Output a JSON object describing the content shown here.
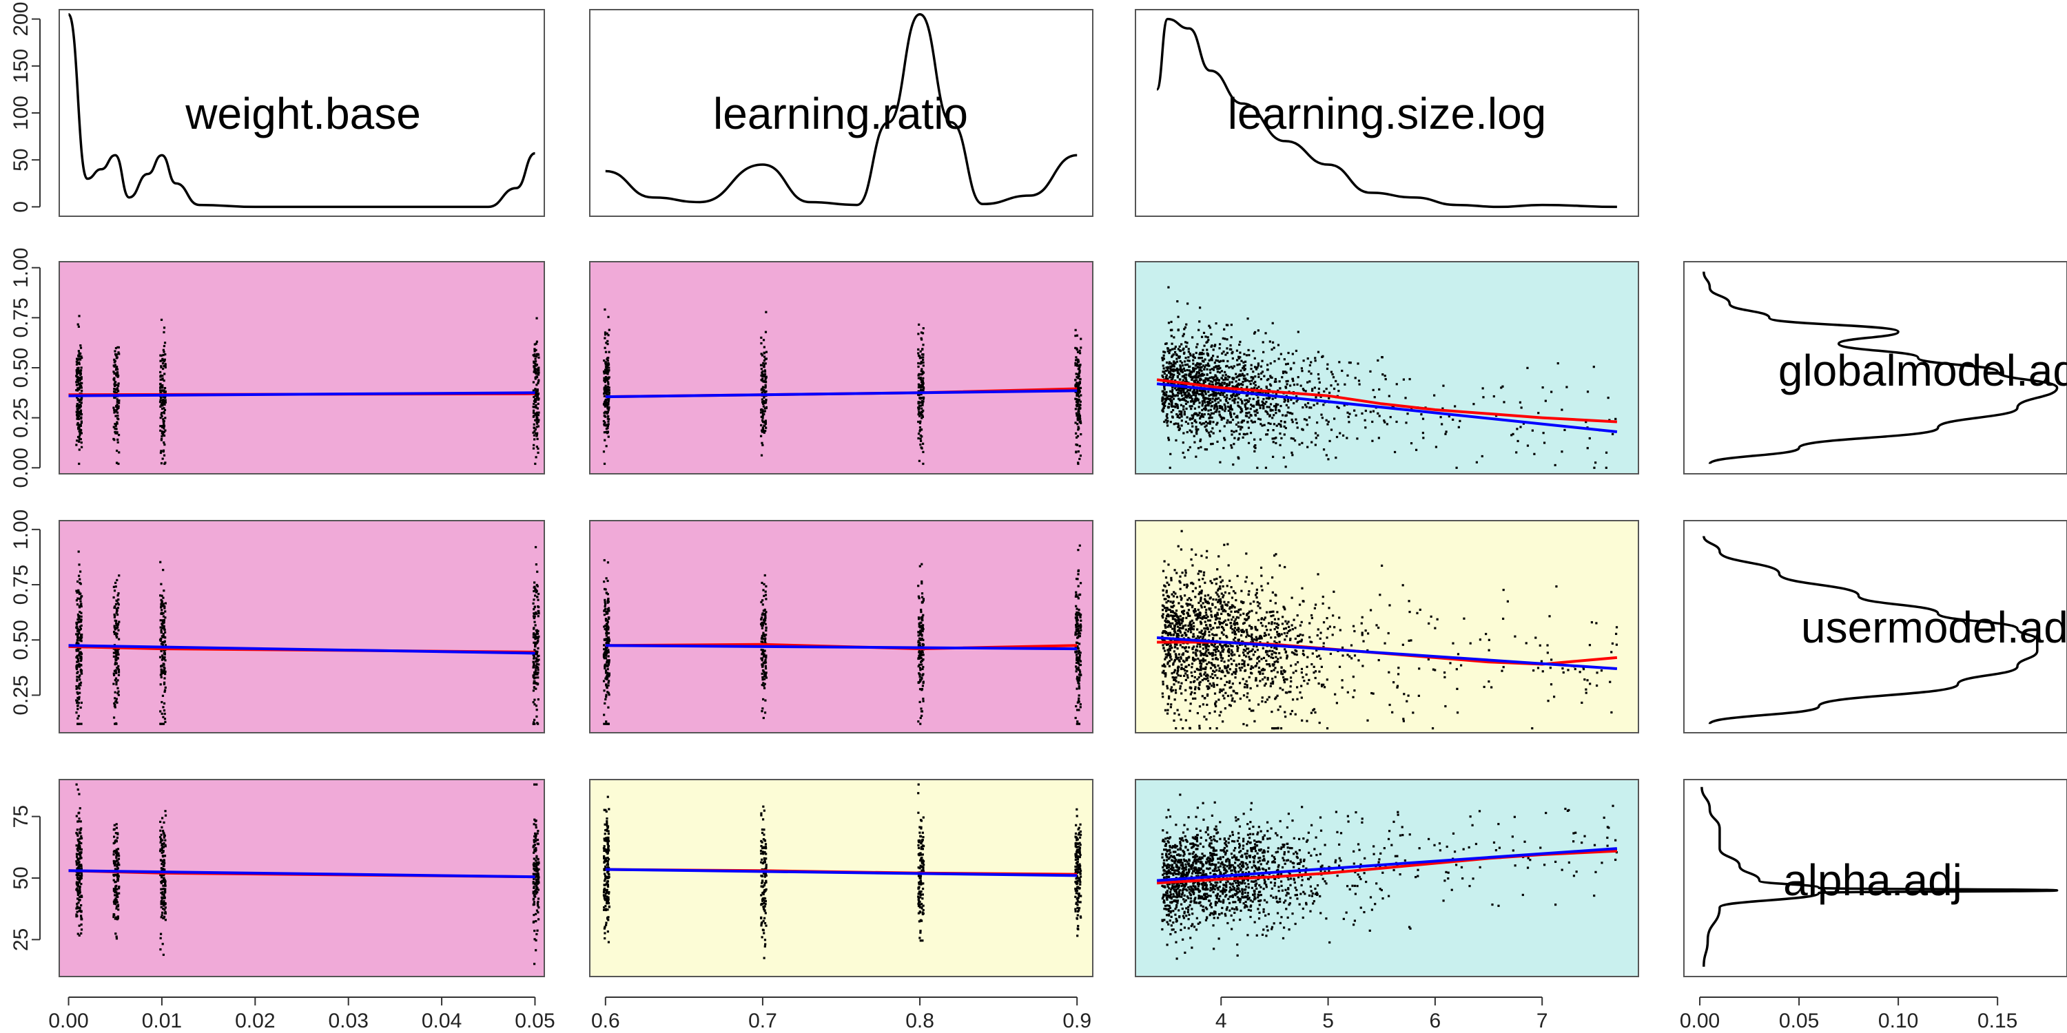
{
  "chart_data": {
    "type": "scatterplot-matrix",
    "variables": [
      "weight.base",
      "learning.ratio",
      "learning.size.log",
      "globalmodel.adj",
      "usermodel.adj",
      "alpha.adj"
    ],
    "x_variables": [
      "weight.base",
      "learning.ratio",
      "learning.size.log"
    ],
    "y_variables": [
      "globalmodel.adj",
      "usermodel.adj",
      "alpha.adj"
    ],
    "colors": {
      "magenta_cell": "#f0aad8",
      "yellow_cell": "#fcfcd6",
      "cyan_cell": "#c9f0ee",
      "loess_line": "#ff0000",
      "linear_fit": "#0000ff",
      "points": "#000000"
    },
    "x_ticks": [
      [
        "0.00",
        "0.01",
        "0.02",
        "0.03",
        "0.04",
        "0.05"
      ],
      [
        "0.6",
        "0.7",
        "0.8",
        "0.9"
      ],
      [
        "4",
        "5",
        "6",
        "7"
      ],
      [
        "0.00",
        "0.05",
        "0.10",
        "0.15"
      ]
    ],
    "x_tick_values": [
      [
        0,
        0.01,
        0.02,
        0.03,
        0.04,
        0.05
      ],
      [
        0.6,
        0.7,
        0.8,
        0.9
      ],
      [
        4,
        5,
        6,
        7
      ],
      [
        0,
        0.05,
        0.1,
        0.15
      ]
    ],
    "x_ranges": [
      [
        -0.001,
        0.051
      ],
      [
        0.59,
        0.91
      ],
      [
        3.2,
        7.9
      ],
      [
        -0.008,
        0.185
      ]
    ],
    "y_ticks": [
      [
        "0",
        "50",
        "100",
        "150",
        "200"
      ],
      [
        "0.00",
        "0.25",
        "0.50",
        "0.75",
        "1.00"
      ],
      [
        "0.25",
        "0.50",
        "0.75",
        "1.00"
      ],
      [
        "25",
        "50",
        "75"
      ]
    ],
    "y_tick_values": [
      [
        0,
        50,
        100,
        150,
        200
      ],
      [
        0,
        0.25,
        0.5,
        0.75,
        1.0
      ],
      [
        0.25,
        0.5,
        0.75,
        1.0
      ],
      [
        25,
        50,
        75
      ]
    ],
    "y_ranges": [
      [
        -10,
        210
      ],
      [
        -0.03,
        1.03
      ],
      [
        0.08,
        1.04
      ],
      [
        10,
        90
      ]
    ],
    "density_x": [
      {
        "x": [
          0,
          0.002,
          0.0035,
          0.005,
          0.0065,
          0.0085,
          0.01,
          0.0115,
          0.014,
          0.02,
          0.03,
          0.045,
          0.048,
          0.05
        ],
        "y": [
          205,
          30,
          40,
          55,
          10,
          35,
          55,
          25,
          2,
          0,
          0,
          0,
          20,
          57
        ]
      },
      {
        "x": [
          0.6,
          0.63,
          0.66,
          0.7,
          0.73,
          0.76,
          0.78,
          0.8,
          0.82,
          0.84,
          0.87,
          0.9
        ],
        "y": [
          38,
          10,
          5,
          45,
          5,
          2,
          90,
          205,
          90,
          3,
          12,
          55
        ]
      },
      {
        "x": [
          3.4,
          3.5,
          3.7,
          3.9,
          4.2,
          4.6,
          5.0,
          5.4,
          5.8,
          6.2,
          6.6,
          7.0,
          7.7
        ],
        "y": [
          125,
          200,
          190,
          145,
          110,
          70,
          45,
          15,
          10,
          2,
          0,
          2,
          0
        ]
      }
    ],
    "density_y": [
      {
        "y": [
          0.02,
          0.1,
          0.2,
          0.3,
          0.4,
          0.48,
          0.55,
          0.62,
          0.68,
          0.75,
          0.82,
          0.9,
          0.98
        ],
        "x": [
          0.005,
          0.05,
          0.12,
          0.16,
          0.18,
          0.15,
          0.11,
          0.07,
          0.1,
          0.035,
          0.015,
          0.005,
          0.002
        ]
      },
      {
        "y": [
          0.12,
          0.2,
          0.3,
          0.38,
          0.45,
          0.5,
          0.55,
          0.62,
          0.7,
          0.8,
          0.9,
          0.97
        ],
        "x": [
          0.005,
          0.06,
          0.13,
          0.16,
          0.17,
          0.17,
          0.16,
          0.12,
          0.08,
          0.04,
          0.01,
          0.002
        ]
      },
      {
        "y": [
          14,
          25,
          38,
          44,
          45,
          46,
          49,
          55,
          62,
          70,
          78,
          87
        ],
        "x": [
          0.002,
          0.004,
          0.01,
          0.06,
          0.18,
          0.06,
          0.03,
          0.02,
          0.01,
          0.01,
          0.005,
          0.001
        ]
      }
    ],
    "scatter_cells": [
      {
        "row": 1,
        "col": 0,
        "bg": "magenta",
        "x_levels": [
          0.001,
          0.005,
          0.01,
          0.05
        ],
        "center": 0.37,
        "spread": 0.14,
        "lo": 0.02,
        "hi": 0.98,
        "linear": [
          [
            0,
            0.36
          ],
          [
            0.05,
            0.375
          ]
        ],
        "loess": [
          [
            0,
            0.365
          ],
          [
            0.05,
            0.37
          ]
        ]
      },
      {
        "row": 1,
        "col": 1,
        "bg": "magenta",
        "x_levels": [
          0.6,
          0.7,
          0.8,
          0.9
        ],
        "center": 0.37,
        "spread": 0.14,
        "lo": 0.02,
        "hi": 0.98,
        "linear": [
          [
            0.6,
            0.355
          ],
          [
            0.9,
            0.385
          ]
        ],
        "loess": [
          [
            0.6,
            0.355
          ],
          [
            0.7,
            0.365
          ],
          [
            0.8,
            0.375
          ],
          [
            0.9,
            0.395
          ]
        ]
      },
      {
        "row": 1,
        "col": 2,
        "bg": "cyan",
        "continuous": true,
        "center": 0.37,
        "spread": 0.13,
        "lo": 0.0,
        "hi": 1.0,
        "linear": [
          [
            3.4,
            0.42
          ],
          [
            7.7,
            0.18
          ]
        ],
        "loess": [
          [
            3.4,
            0.44
          ],
          [
            4,
            0.4
          ],
          [
            4.5,
            0.38
          ],
          [
            5,
            0.36
          ],
          [
            5.5,
            0.32
          ],
          [
            6,
            0.29
          ],
          [
            6.5,
            0.27
          ],
          [
            7,
            0.25
          ],
          [
            7.7,
            0.23
          ]
        ]
      },
      {
        "row": 2,
        "col": 0,
        "bg": "magenta",
        "x_levels": [
          0.001,
          0.005,
          0.01,
          0.05
        ],
        "center": 0.47,
        "spread": 0.15,
        "lo": 0.12,
        "hi": 0.98,
        "linear": [
          [
            0,
            0.475
          ],
          [
            0.05,
            0.44
          ]
        ],
        "loess": [
          [
            0,
            0.47
          ],
          [
            0.01,
            0.46
          ],
          [
            0.05,
            0.445
          ]
        ]
      },
      {
        "row": 2,
        "col": 1,
        "bg": "magenta",
        "x_levels": [
          0.6,
          0.7,
          0.8,
          0.9
        ],
        "center": 0.47,
        "spread": 0.15,
        "lo": 0.12,
        "hi": 0.98,
        "linear": [
          [
            0.6,
            0.475
          ],
          [
            0.9,
            0.46
          ]
        ],
        "loess": [
          [
            0.6,
            0.475
          ],
          [
            0.7,
            0.48
          ],
          [
            0.8,
            0.46
          ],
          [
            0.9,
            0.475
          ]
        ]
      },
      {
        "row": 2,
        "col": 2,
        "bg": "yellow",
        "continuous": true,
        "center": 0.47,
        "spread": 0.15,
        "lo": 0.1,
        "hi": 1.0,
        "linear": [
          [
            3.4,
            0.51
          ],
          [
            7.7,
            0.37
          ]
        ],
        "loess": [
          [
            3.4,
            0.49
          ],
          [
            4,
            0.49
          ],
          [
            4.5,
            0.48
          ],
          [
            5,
            0.46
          ],
          [
            5.5,
            0.44
          ],
          [
            6,
            0.42
          ],
          [
            6.5,
            0.4
          ],
          [
            7,
            0.39
          ],
          [
            7.7,
            0.42
          ]
        ]
      },
      {
        "row": 3,
        "col": 0,
        "bg": "magenta",
        "x_levels": [
          0.001,
          0.005,
          0.01,
          0.05
        ],
        "center": 52,
        "spread": 12,
        "lo": 14,
        "hi": 88,
        "linear": [
          [
            0,
            53
          ],
          [
            0.05,
            50.5
          ]
        ],
        "loess": [
          [
            0,
            53
          ],
          [
            0.01,
            52
          ],
          [
            0.05,
            50.5
          ]
        ]
      },
      {
        "row": 3,
        "col": 1,
        "bg": "yellow",
        "x_levels": [
          0.6,
          0.7,
          0.8,
          0.9
        ],
        "center": 52,
        "spread": 12,
        "lo": 14,
        "hi": 88,
        "linear": [
          [
            0.6,
            53.5
          ],
          [
            0.9,
            51
          ]
        ],
        "loess": [
          [
            0.6,
            53.5
          ],
          [
            0.7,
            53
          ],
          [
            0.8,
            52
          ],
          [
            0.9,
            51.5
          ]
        ]
      },
      {
        "row": 3,
        "col": 2,
        "bg": "cyan",
        "continuous": true,
        "center": 50,
        "spread": 10,
        "lo": 15,
        "hi": 88,
        "linear": [
          [
            3.4,
            49
          ],
          [
            7.7,
            62
          ]
        ],
        "loess": [
          [
            3.4,
            48
          ],
          [
            4,
            49.5
          ],
          [
            4.5,
            50.5
          ],
          [
            5,
            52
          ],
          [
            5.5,
            54
          ],
          [
            6,
            56
          ],
          [
            6.5,
            58
          ],
          [
            7,
            59.5
          ],
          [
            7.7,
            61
          ]
        ]
      }
    ]
  }
}
